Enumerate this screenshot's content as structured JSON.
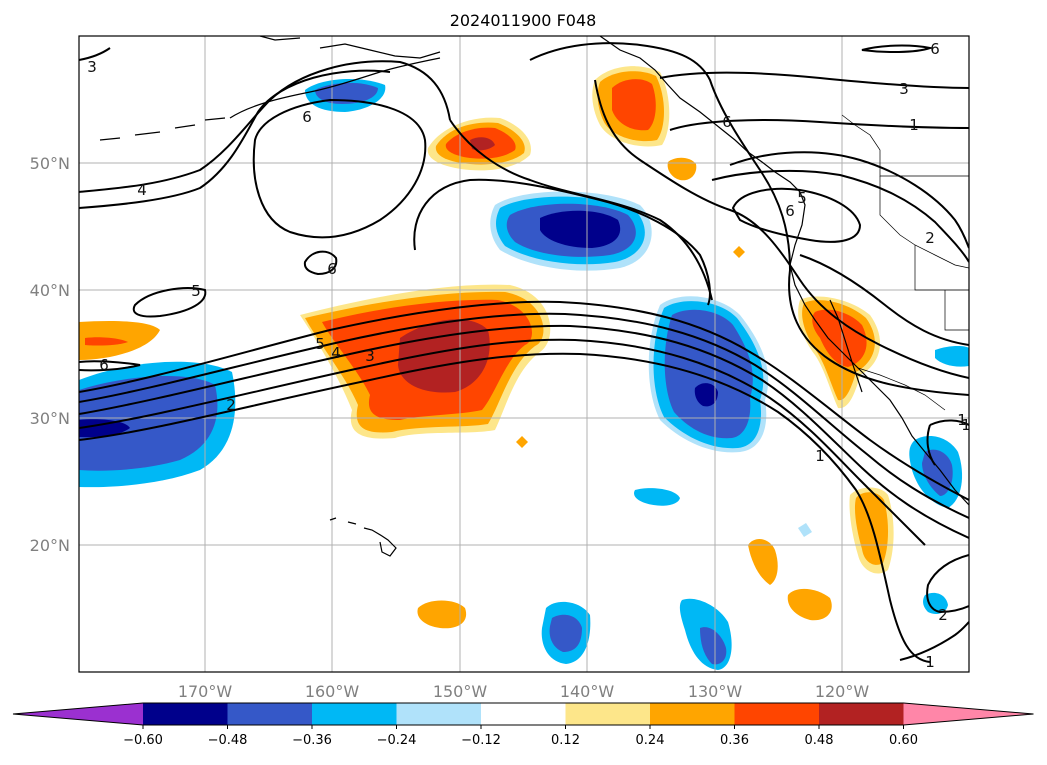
{
  "title": "2024011900 F048",
  "map": {
    "lat_labels": [
      "50°N",
      "40°N",
      "30°N",
      "20°N"
    ],
    "lon_labels": [
      "170°W",
      "160°W",
      "150°W",
      "140°W",
      "130°W",
      "120°W"
    ],
    "contour_labels": [
      "3",
      "4",
      "5",
      "6",
      "2",
      "1",
      "3",
      "4",
      "5",
      "6",
      "1",
      "2",
      "3",
      "6",
      "1",
      "2",
      "1",
      "6",
      "6",
      "5",
      "6",
      "1"
    ]
  },
  "colorbar": {
    "ticks": [
      "−0.60",
      "−0.48",
      "−0.36",
      "−0.24",
      "−0.12",
      "0.12",
      "0.24",
      "0.36",
      "0.48",
      "0.60"
    ],
    "colors": [
      "#9b30d0",
      "#00008b",
      "#3558c8",
      "#00b8f5",
      "#b0e2fa",
      "#ffffff",
      "#fde68a",
      "#ffa500",
      "#ff4500",
      "#b22222",
      "#ff86a8"
    ]
  },
  "palette": {
    "neg_dark": "#00008b",
    "neg_mid": "#3558c8",
    "neg_light": "#00b8f5",
    "neg_pale": "#b0e2fa",
    "pos_pale": "#fde68a",
    "pos_light": "#ffa500",
    "pos_mid": "#ff4500",
    "pos_dark": "#b22222"
  }
}
